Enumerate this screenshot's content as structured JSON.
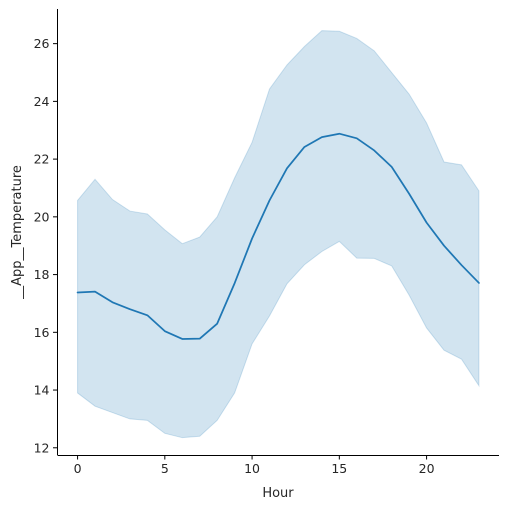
{
  "chart_data": {
    "type": "line",
    "xlabel": "Hour",
    "ylabel": "__App__Temperature",
    "xlim": [
      -1.15,
      24.15
    ],
    "ylim": [
      11.75,
      27.2
    ],
    "xticks": [
      0,
      5,
      10,
      15,
      20
    ],
    "yticks": [
      12,
      14,
      16,
      18,
      20,
      22,
      24,
      26
    ],
    "grid": false,
    "colors": {
      "line": "#1f77b4",
      "band": "#1f77b4"
    },
    "series": [
      {
        "x": [
          0,
          1,
          2,
          3,
          4,
          5,
          6,
          7,
          8,
          9,
          10,
          11,
          12,
          13,
          14,
          15,
          16,
          17,
          18,
          19,
          20,
          21,
          22,
          23
        ],
        "y": [
          17.38,
          17.41,
          17.04,
          16.8,
          16.59,
          16.04,
          15.77,
          15.78,
          16.3,
          17.7,
          19.25,
          20.57,
          21.68,
          22.42,
          22.76,
          22.88,
          22.72,
          22.3,
          21.73,
          20.8,
          19.8,
          19.0,
          18.33,
          17.71
        ],
        "lower": [
          13.9,
          13.44,
          13.22,
          13.0,
          12.95,
          12.5,
          12.35,
          12.4,
          12.95,
          13.9,
          15.6,
          16.57,
          17.68,
          18.34,
          18.8,
          19.15,
          18.57,
          18.56,
          18.3,
          17.29,
          16.15,
          15.38,
          15.07,
          14.15
        ],
        "upper": [
          20.57,
          21.3,
          20.6,
          20.2,
          20.1,
          19.55,
          19.07,
          19.3,
          20.0,
          21.35,
          22.58,
          24.43,
          25.26,
          25.9,
          26.45,
          26.43,
          26.18,
          25.75,
          25.0,
          24.25,
          23.25,
          21.9,
          21.8,
          20.9
        ]
      }
    ]
  }
}
